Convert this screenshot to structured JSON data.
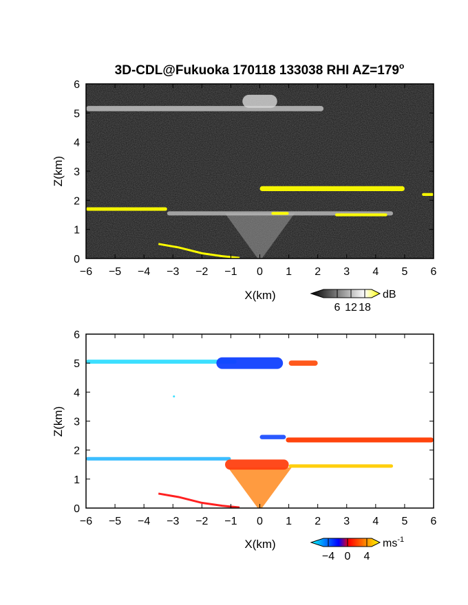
{
  "title": "3D-CDL@Fukuoka 170118 133038 RHI AZ=179",
  "title_superscript": "o",
  "chart_data": [
    {
      "type": "heatmap",
      "field": "reflectivity",
      "xlabel": "X(km)",
      "ylabel": "Z(km)",
      "xlim": [
        -6,
        6
      ],
      "ylim": [
        0,
        6
      ],
      "x_ticks": [
        "-6",
        "-5",
        "-4",
        "-3",
        "-2",
        "-1",
        "0",
        "1",
        "2",
        "3",
        "4",
        "5",
        "6"
      ],
      "y_ticks": [
        "0",
        "1",
        "2",
        "3",
        "4",
        "5",
        "6"
      ],
      "background_color": "#111111",
      "colorbar": {
        "unit": "dB",
        "ticks": [
          "6",
          "12",
          "18"
        ],
        "range": [
          0,
          21
        ],
        "colors": [
          "#000000",
          "#ffffff",
          "#ffff00"
        ]
      },
      "layers": [
        {
          "x_start": -6.0,
          "x_end": 2.2,
          "z": 5.15,
          "thickness": 0.18,
          "level_db": 10,
          "color": "#c8c8c8"
        },
        {
          "x_start": -0.6,
          "x_end": 0.6,
          "z": 5.4,
          "thickness": 0.45,
          "level_db": 12,
          "color": "#d8d8d8"
        },
        {
          "x_start": 0.0,
          "x_end": 5.0,
          "z": 2.4,
          "thickness": 0.17,
          "level_db": 20,
          "color": "#ffff00"
        },
        {
          "x_start": 5.6,
          "x_end": 6.0,
          "z": 2.2,
          "thickness": 0.1,
          "level_db": 20,
          "color": "#ffff00"
        },
        {
          "x_start": -6.0,
          "x_end": -3.2,
          "z": 1.7,
          "thickness": 0.12,
          "level_db": 20,
          "color": "#ffff00"
        },
        {
          "x_start": -3.2,
          "x_end": 4.6,
          "z": 1.55,
          "thickness": 0.14,
          "level_db": 10,
          "color": "#bdbdbd"
        },
        {
          "x_start": 0.4,
          "x_end": 1.0,
          "z": 1.55,
          "thickness": 0.1,
          "level_db": 20,
          "color": "#ffff00"
        },
        {
          "x_start": 2.6,
          "x_end": 4.4,
          "z": 1.5,
          "thickness": 0.1,
          "level_db": 20,
          "color": "#ffff00"
        }
      ],
      "cone": {
        "x_center": 0.0,
        "z_top": 1.55,
        "half_width_top": 1.2,
        "level_db": 9,
        "color": "#9a9a9a"
      },
      "slant_echo": {
        "x": [
          -3.5,
          -2.8,
          -2.0,
          -1.3,
          -0.7
        ],
        "z": [
          0.5,
          0.38,
          0.18,
          0.08,
          0.02
        ],
        "color": "#ffff00"
      }
    },
    {
      "type": "heatmap",
      "field": "doppler velocity",
      "xlabel": "X(km)",
      "ylabel": "Z(km)",
      "xlim": [
        -6,
        6
      ],
      "ylim": [
        0,
        6
      ],
      "x_ticks": [
        "-6",
        "-5",
        "-4",
        "-3",
        "-2",
        "-1",
        "0",
        "1",
        "2",
        "3",
        "4",
        "5",
        "6"
      ],
      "y_ticks": [
        "0",
        "1",
        "2",
        "3",
        "4",
        "5",
        "6"
      ],
      "background_color": "#ffffff",
      "colorbar": {
        "unit": "ms",
        "unit_exponent": "-1",
        "ticks": [
          "-4",
          "0",
          "4"
        ],
        "range": [
          -5,
          5
        ],
        "colors": [
          "#00ffff",
          "#0000ff",
          "#ff0000",
          "#ffff00"
        ]
      },
      "layers": [
        {
          "x_start": -6.0,
          "x_end": -0.8,
          "z": 5.05,
          "thickness": 0.14,
          "velocity_ms": -3.2,
          "color": "#33ddff"
        },
        {
          "x_start": -1.5,
          "x_end": 0.8,
          "z": 5.0,
          "thickness": 0.4,
          "velocity_ms": -1.5,
          "color": "#1040ff"
        },
        {
          "x_start": 1.0,
          "x_end": 2.0,
          "z": 5.0,
          "thickness": 0.18,
          "velocity_ms": 2.0,
          "color": "#ff5010"
        },
        {
          "x_start": -3.0,
          "x_end": -3.0,
          "z": 3.85,
          "thickness": 0.04,
          "velocity_ms": -3.2,
          "color": "#33ddff"
        },
        {
          "x_start": 0.0,
          "x_end": 0.9,
          "z": 2.45,
          "thickness": 0.15,
          "velocity_ms": -1.0,
          "color": "#2050ff"
        },
        {
          "x_start": 0.9,
          "x_end": 6.0,
          "z": 2.35,
          "thickness": 0.17,
          "velocity_ms": 1.8,
          "color": "#ff3a00"
        },
        {
          "x_start": -6.0,
          "x_end": -1.0,
          "z": 1.7,
          "thickness": 0.12,
          "velocity_ms": -3.0,
          "color": "#33bbff"
        },
        {
          "x_start": -1.2,
          "x_end": 1.0,
          "z": 1.5,
          "thickness": 0.35,
          "velocity_ms": 0.5,
          "color": "#ff4010"
        },
        {
          "x_start": 1.0,
          "x_end": 4.6,
          "z": 1.45,
          "thickness": 0.12,
          "velocity_ms": 3.5,
          "color": "#ffcc00"
        }
      ],
      "cone": {
        "x_center": 0.0,
        "z_top": 1.4,
        "half_width_top": 1.1,
        "velocity_ms": 1.5,
        "color": "#ff7a00"
      },
      "slant_echo": {
        "x": [
          -3.5,
          -2.8,
          -2.0,
          -1.3,
          -0.7
        ],
        "z": [
          0.5,
          0.38,
          0.18,
          0.08,
          0.02
        ],
        "color": "#ff2020"
      }
    }
  ]
}
